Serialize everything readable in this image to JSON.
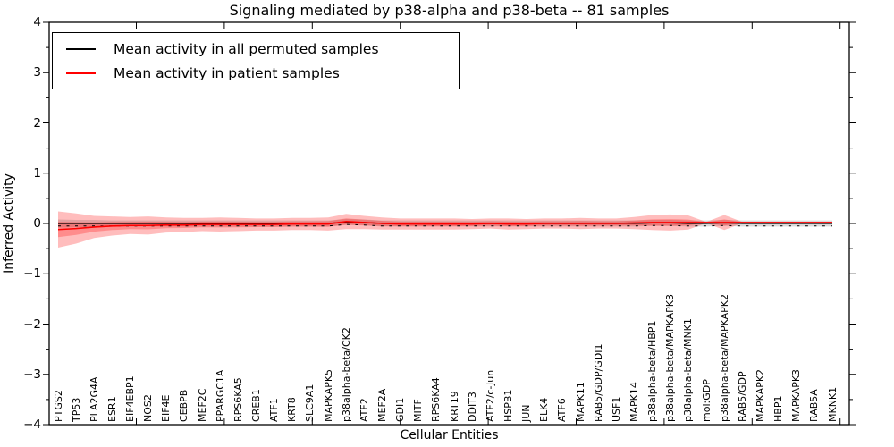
{
  "chart_data": {
    "type": "line",
    "title": "Signaling mediated by p38-alpha and p38-beta -- 81 samples",
    "xlabel": "Cellular Entities",
    "ylabel": "Inferred Activity",
    "ylim": [
      -4,
      4
    ],
    "yticks": [
      4,
      3,
      2,
      1,
      0,
      -1,
      -2,
      -3,
      -4
    ],
    "grid": false,
    "legend_position": "upper left",
    "categories": [
      "PTGS2",
      "TP53",
      "PLA2G4A",
      "ESR1",
      "EIF4EBP1",
      "NOS2",
      "EIF4E",
      "CEBPB",
      "MEF2C",
      "PPARGC1A",
      "RPS6KA5",
      "CREB1",
      "ATF1",
      "KRT8",
      "SLC9A1",
      "MAPKAPK5",
      "p38alpha-beta/CK2",
      "ATF2",
      "MEF2A",
      "GDI1",
      "MITF",
      "RPS6KA4",
      "KRT19",
      "DDIT3",
      "ATF2/c-Jun",
      "HSPB1",
      "JUN",
      "ELK4",
      "ATF6",
      "MAPK11",
      "RAB5/GDP/GDI1",
      "USF1",
      "MAPK14",
      "p38alpha-beta/HBP1",
      "p38alpha-beta/MAPKAPK3",
      "p38alpha-beta/MNK1",
      "mol:GDP",
      "p38alpha-beta/MAPKAPK2",
      "RAB5/GDP",
      "MAPKAPK2",
      "HBP1",
      "MAPKAPK3",
      "RAB5A",
      "MKNK1"
    ],
    "series": [
      {
        "name": "Mean activity in all permuted samples",
        "color": "#000000",
        "band_color": "rgba(0,0,0,0.15)",
        "values": [
          0,
          0,
          0,
          0,
          0,
          0,
          0,
          0,
          0,
          0,
          0,
          0,
          0,
          0,
          0,
          0,
          0.03,
          0.02,
          0,
          0,
          0,
          0,
          0,
          0,
          0,
          0,
          0,
          0,
          0,
          0,
          0,
          0,
          0,
          0.01,
          0.01,
          0,
          0,
          0.01,
          0,
          0,
          0,
          0,
          0,
          0
        ],
        "band_halfwidth": [
          0.08,
          0.07,
          0.07,
          0.06,
          0.06,
          0.06,
          0.06,
          0.06,
          0.06,
          0.06,
          0.06,
          0.06,
          0.06,
          0.06,
          0.06,
          0.06,
          0.06,
          0.06,
          0.06,
          0.06,
          0.06,
          0.06,
          0.06,
          0.06,
          0.06,
          0.06,
          0.06,
          0.06,
          0.06,
          0.06,
          0.06,
          0.06,
          0.06,
          0.06,
          0.06,
          0.06,
          0.06,
          0.06,
          0.06,
          0.06,
          0.06,
          0.06,
          0.06,
          0.06
        ],
        "error_dash_offset": -0.05
      },
      {
        "name": "Mean activity in patient samples",
        "color": "#ff0000",
        "band_color": "rgba(255,0,0,0.26)",
        "values": [
          -0.12,
          -0.1,
          -0.07,
          -0.05,
          -0.04,
          -0.04,
          -0.03,
          -0.03,
          -0.02,
          -0.02,
          -0.02,
          -0.02,
          -0.02,
          -0.01,
          -0.01,
          -0.01,
          0.04,
          0.02,
          0,
          -0.01,
          -0.01,
          -0.01,
          -0.01,
          -0.01,
          0,
          -0.01,
          -0.01,
          0,
          0,
          0,
          0,
          0,
          0.01,
          0.02,
          0.02,
          0.02,
          0.02,
          0.02,
          0.02,
          0.02,
          0.02,
          0.02,
          0.02,
          0.02
        ],
        "band_halfwidth": [
          0.36,
          0.3,
          0.22,
          0.19,
          0.17,
          0.18,
          0.15,
          0.14,
          0.13,
          0.14,
          0.13,
          0.12,
          0.12,
          0.12,
          0.12,
          0.13,
          0.15,
          0.13,
          0.12,
          0.11,
          0.11,
          0.11,
          0.11,
          0.1,
          0.1,
          0.11,
          0.1,
          0.1,
          0.1,
          0.11,
          0.1,
          0.1,
          0.12,
          0.15,
          0.16,
          0.14,
          0.012,
          0.15,
          0.012,
          0.012,
          0.012,
          0.012,
          0.012,
          0.012
        ]
      }
    ]
  }
}
